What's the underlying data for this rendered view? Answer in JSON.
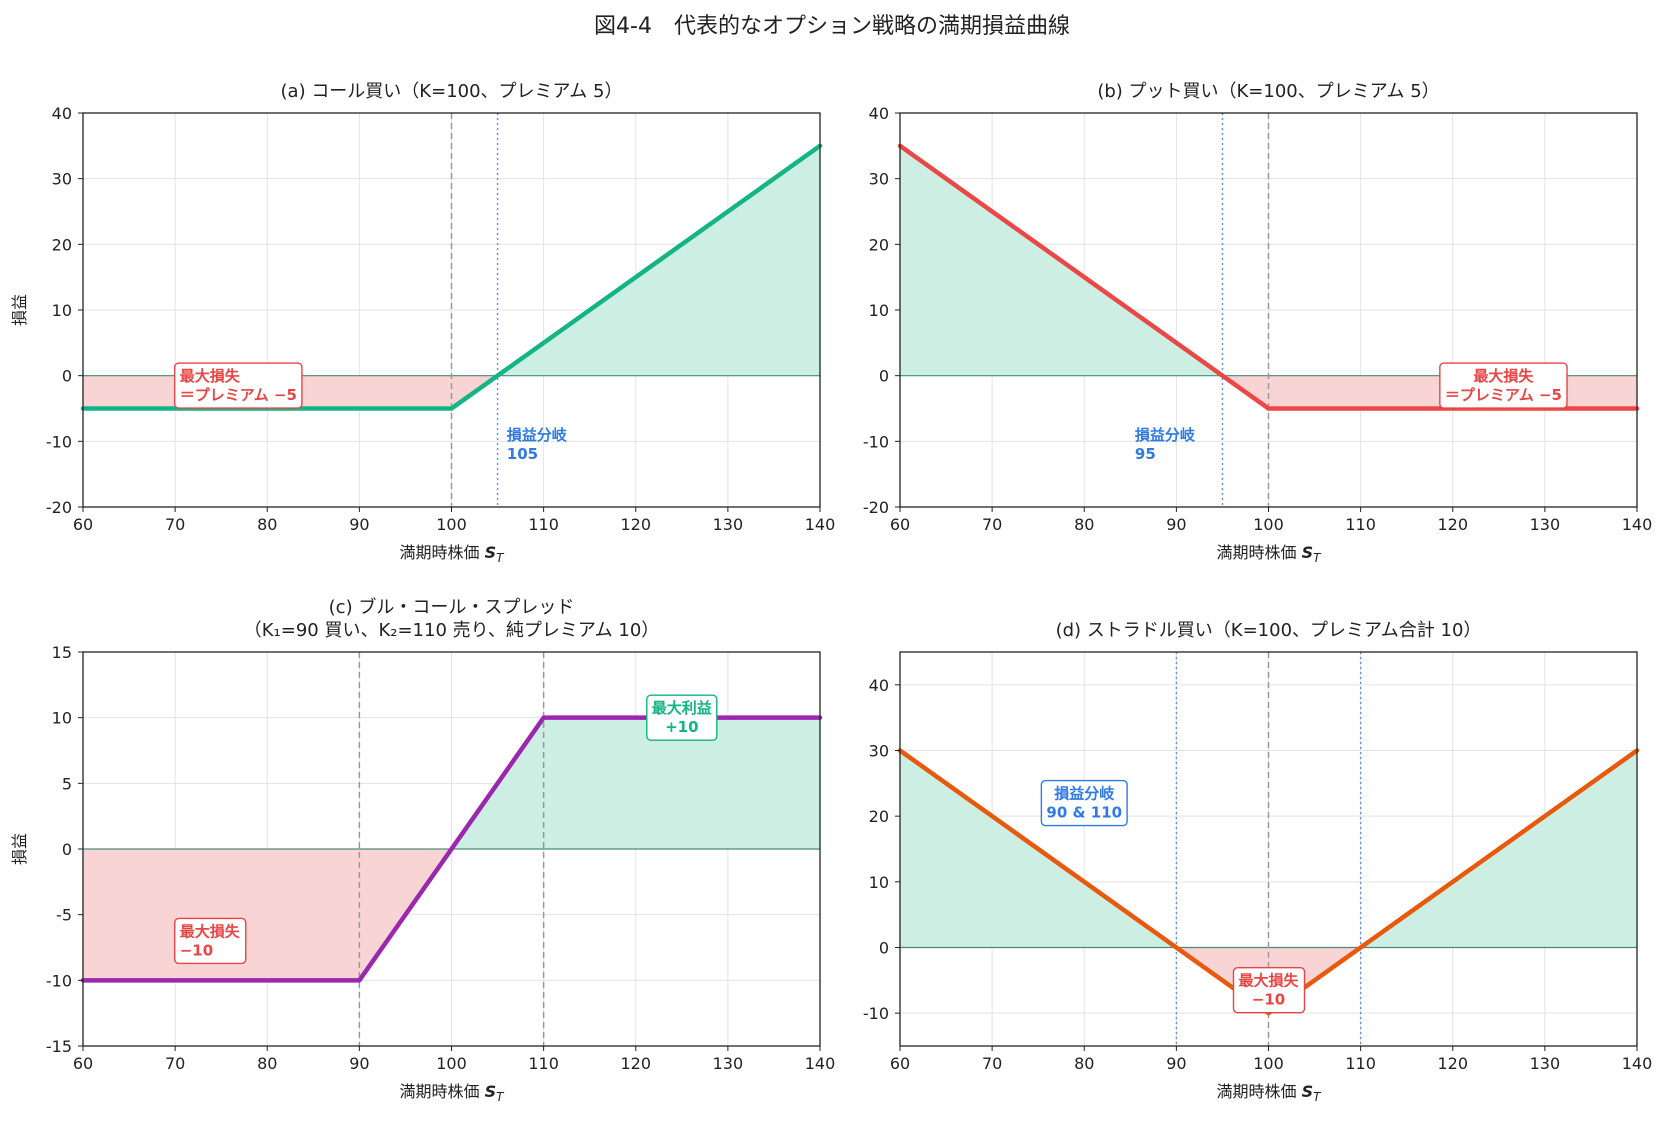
{
  "figure_title": "図4-4　代表的なオプション戦略の満期損益曲線",
  "colors": {
    "profit_fill": "#cdeee2",
    "loss_fill": "#f9d4d4",
    "zero_line": "#4a8a78",
    "strike_line": "#999999",
    "breakeven_line": "#5b8ef0",
    "loss_text": "#e84545",
    "profit_text": "#12b47f",
    "breakeven_text": "#2f7ae5"
  },
  "chart_data": [
    {
      "type": "line",
      "title": "(a) コール買い（K=100、プレミアム 5）",
      "xlabel": "満期時株価 S_T",
      "xlabel_main": "満期時株価 ",
      "xlabel_var": "S",
      "xlabel_sub": "T",
      "ylabel": "損益",
      "xlim": [
        60,
        140
      ],
      "ylim": [
        -20,
        40
      ],
      "xticks": [
        60,
        70,
        80,
        90,
        100,
        110,
        120,
        130,
        140
      ],
      "yticks": [
        -20,
        -10,
        0,
        10,
        20,
        30,
        40
      ],
      "grid": true,
      "series": [
        {
          "color": "#14b584",
          "x": [
            60,
            100,
            140
          ],
          "y": [
            -5,
            -5,
            35
          ]
        }
      ],
      "strike_lines": [
        100
      ],
      "breakeven_lines": [
        105
      ],
      "annotations": [
        {
          "kind": "loss",
          "lines": [
            "最大損失",
            "＝プレミアム −5"
          ],
          "x": 70.5,
          "y": -1.5,
          "align": "left",
          "box": true
        },
        {
          "kind": "breakeven",
          "lines": [
            "損益分岐",
            "105"
          ],
          "x": 106,
          "y": -10.5,
          "align": "left",
          "box": false
        }
      ]
    },
    {
      "type": "line",
      "title": "(b) プット買い（K=100、プレミアム 5）",
      "xlabel": "満期時株価 S_T",
      "xlabel_main": "満期時株価 ",
      "xlabel_var": "S",
      "xlabel_sub": "T",
      "ylabel": "",
      "xlim": [
        60,
        140
      ],
      "ylim": [
        -20,
        40
      ],
      "xticks": [
        60,
        70,
        80,
        90,
        100,
        110,
        120,
        130,
        140
      ],
      "yticks": [
        -20,
        -10,
        0,
        10,
        20,
        30,
        40
      ],
      "grid": true,
      "series": [
        {
          "color": "#ec4646",
          "x": [
            60,
            100,
            140
          ],
          "y": [
            35,
            -5,
            -5
          ]
        }
      ],
      "strike_lines": [
        100
      ],
      "breakeven_lines": [
        95
      ],
      "annotations": [
        {
          "kind": "loss",
          "lines": [
            "最大損失",
            "＝プレミアム −5"
          ],
          "x": 125.5,
          "y": -1.5,
          "align": "center",
          "box": true
        },
        {
          "kind": "breakeven",
          "lines": [
            "損益分岐",
            "95"
          ],
          "x": 85.5,
          "y": -10.5,
          "align": "left",
          "box": false
        }
      ]
    },
    {
      "type": "line",
      "title": "(c) ブル・コール・スプレッド",
      "title2": "（K₁=90 買い、K₂=110 売り、純プレミアム 10）",
      "xlabel": "満期時株価 S_T",
      "xlabel_main": "満期時株価 ",
      "xlabel_var": "S",
      "xlabel_sub": "T",
      "ylabel": "損益",
      "xlim": [
        60,
        140
      ],
      "ylim": [
        -15,
        15
      ],
      "xticks": [
        60,
        70,
        80,
        90,
        100,
        110,
        120,
        130,
        140
      ],
      "yticks": [
        -15,
        -10,
        -5,
        0,
        5,
        10,
        15
      ],
      "grid": true,
      "series": [
        {
          "color": "#9b27af",
          "x": [
            60,
            90,
            110,
            140
          ],
          "y": [
            -10,
            -10,
            10,
            10
          ]
        }
      ],
      "strike_lines": [
        90,
        110
      ],
      "breakeven_lines": [],
      "annotations": [
        {
          "kind": "loss",
          "lines": [
            "最大損失",
            "−10"
          ],
          "x": 70.5,
          "y": -7,
          "align": "left",
          "box": true
        },
        {
          "kind": "profit",
          "lines": [
            "最大利益",
            "+10"
          ],
          "x": 125,
          "y": 10,
          "align": "center",
          "box": true
        }
      ]
    },
    {
      "type": "line",
      "title": "(d) ストラドル買い（K=100、プレミアム合計 10）",
      "xlabel": "満期時株価 S_T",
      "xlabel_main": "満期時株価 ",
      "xlabel_var": "S",
      "xlabel_sub": "T",
      "ylabel": "",
      "xlim": [
        60,
        140
      ],
      "ylim": [
        -15,
        45
      ],
      "xticks": [
        60,
        70,
        80,
        90,
        100,
        110,
        120,
        130,
        140
      ],
      "yticks": [
        -10,
        0,
        10,
        20,
        30,
        40
      ],
      "grid": true,
      "series": [
        {
          "color": "#e8590c",
          "x": [
            60,
            100,
            140
          ],
          "y": [
            30,
            -10,
            30
          ]
        }
      ],
      "strike_lines": [
        100
      ],
      "breakeven_lines": [
        90,
        110
      ],
      "annotations": [
        {
          "kind": "breakeven",
          "lines": [
            "損益分岐",
            "90 & 110"
          ],
          "x": 80,
          "y": 22,
          "align": "center",
          "box": true
        },
        {
          "kind": "loss",
          "lines": [
            "最大損失",
            "−10"
          ],
          "x": 100,
          "y": -6.5,
          "align": "center",
          "box": true
        }
      ]
    }
  ]
}
